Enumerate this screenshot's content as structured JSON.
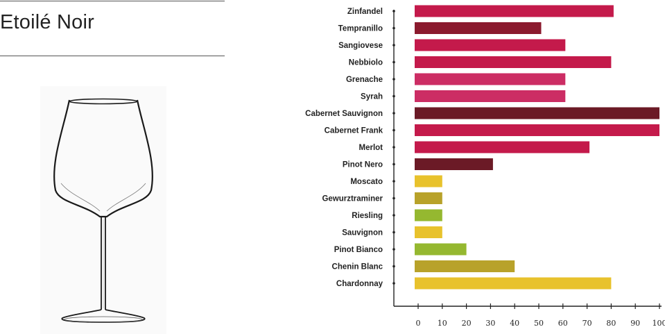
{
  "product": {
    "name": "Etoilé Noir"
  },
  "chart_data": {
    "type": "bar",
    "orientation": "horizontal",
    "title": "",
    "xlabel": "",
    "ylabel": "",
    "xlim": [
      0,
      100
    ],
    "xticks": [
      0,
      10,
      20,
      30,
      40,
      50,
      60,
      70,
      80,
      90,
      100
    ],
    "grid": false,
    "categories": [
      "Zinfandel",
      "Tempranillo",
      "Sangiovese",
      "Nebbiolo",
      "Grenache",
      "Syrah",
      "Cabernet Sauvignon",
      "Cabernet Frank",
      "Merlot",
      "Pinot Nero",
      "Moscato",
      "Gewurztraminer",
      "Riesling",
      "Sauvignon",
      "Pinot Bianco",
      "Chenin Blanc",
      "Chardonnay"
    ],
    "values": [
      81,
      51,
      61,
      80,
      61,
      61,
      100,
      100,
      71,
      31,
      10,
      10,
      10,
      10,
      20,
      40,
      80
    ],
    "colors": [
      "#c41a4b",
      "#8b1a2e",
      "#c41a4b",
      "#c41a4b",
      "#cc2d64",
      "#cc2d64",
      "#6b1a26",
      "#c41a4b",
      "#c41a4b",
      "#6b1a26",
      "#e8c22c",
      "#b8a22a",
      "#95b830",
      "#e8c22c",
      "#95b830",
      "#b8a22a",
      "#e8c22c"
    ]
  }
}
